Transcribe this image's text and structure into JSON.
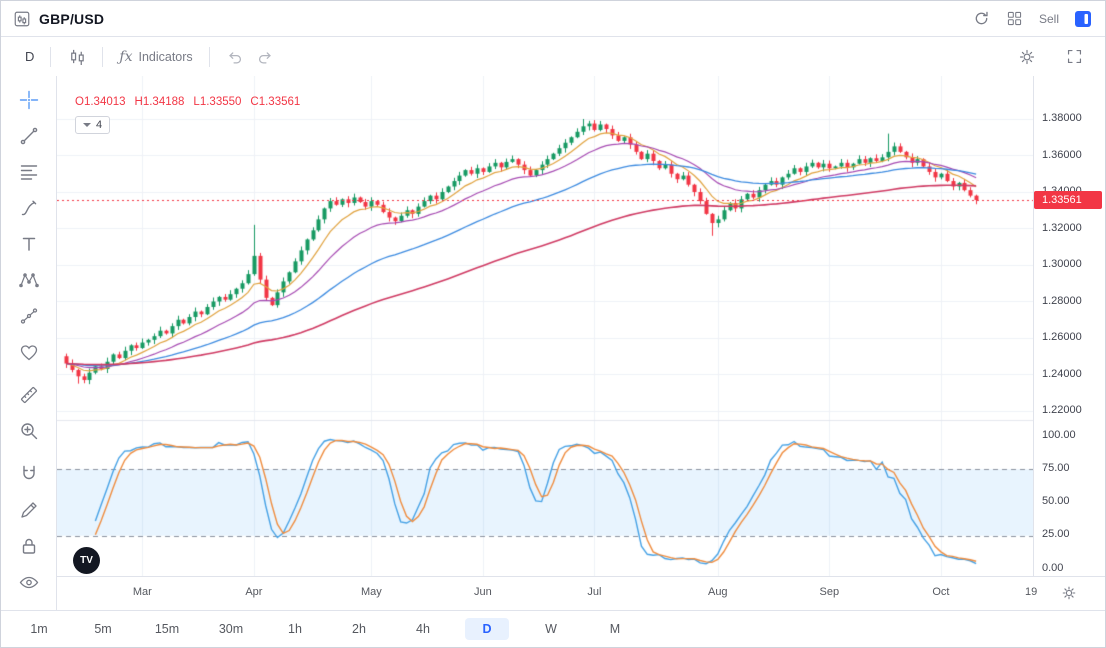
{
  "header": {
    "symbol": "GBP/USD",
    "sell_label": "Sell"
  },
  "toolbar": {
    "interval": "D",
    "fx": "ƒx",
    "indicators_label": "Indicators"
  },
  "legend": {
    "o_label": "O",
    "o": "1.34013",
    "h_label": "H",
    "h": "1.34188",
    "l_label": "L",
    "l": "1.33550",
    "c_label": "C",
    "c": "1.33561",
    "ma_group_count": "4"
  },
  "logo_text": "TV",
  "price_axis": {
    "labels": [
      "1.38000",
      "1.36000",
      "1.34000",
      "1.32000",
      "1.30000",
      "1.28000",
      "1.26000",
      "1.24000",
      "1.22000"
    ],
    "price_tag": "1.33561"
  },
  "stoch_axis": {
    "labels": [
      "100.00",
      "75.00",
      "50.00",
      "25.00",
      "0.00"
    ]
  },
  "time_axis": {
    "labels": [
      "Mar",
      "Apr",
      "May",
      "Jun",
      "Jul",
      "Aug",
      "Sep",
      "Oct"
    ],
    "partial_label": "19"
  },
  "bottom_bar": {
    "intervals": [
      "1m",
      "5m",
      "15m",
      "30m",
      "1h",
      "2h",
      "4h",
      "D",
      "W",
      "M"
    ],
    "selected": "D"
  },
  "sidebar": {
    "tools": [
      "crosshair",
      "trend-line",
      "fib-retracement",
      "brush",
      "text",
      "xabcd-pattern",
      "forecast",
      "emoji",
      "measure",
      "zoom-in",
      "magnet",
      "drawing-pencil-lock",
      "lock-all",
      "hide-all"
    ]
  },
  "colors": {
    "accent": "#2962ff",
    "grid": "#eef2f7",
    "pane_separator": "#e4e7ee",
    "band_dash": "#8a919e",
    "axis_text": "#40434e",
    "selected_bg": "#e8f1fe",
    "price_tag_bg": "#f23645"
  },
  "chart_data": {
    "type": "candlestick",
    "symbol": "GBP/USD",
    "interval": "D",
    "legend_last_ohlc": {
      "open": 1.34013,
      "high": 1.34188,
      "low": 1.3355,
      "close": 1.33561
    },
    "current_price": 1.33561,
    "price_range": [
      1.22,
      1.4
    ],
    "grid_levels": [
      1.38,
      1.36,
      1.34,
      1.32,
      1.3,
      1.28,
      1.26,
      1.24,
      1.22
    ],
    "months": [
      "Mar",
      "Apr",
      "May",
      "Jun",
      "Jul",
      "Aug",
      "Sep",
      "Oct"
    ],
    "month_indices": [
      13,
      32,
      52,
      71,
      90,
      111,
      130,
      149
    ],
    "up_color": "#179a63",
    "down_color": "#f23645",
    "candles": {
      "first_open": 1.25,
      "closes": [
        1.246,
        1.2425,
        1.239,
        1.237,
        1.241,
        1.2445,
        1.243,
        1.247,
        1.251,
        1.249,
        1.253,
        1.256,
        1.2545,
        1.2575,
        1.259,
        1.261,
        1.264,
        1.2625,
        1.2665,
        1.27,
        1.268,
        1.2715,
        1.2745,
        1.273,
        1.277,
        1.28,
        1.2825,
        1.281,
        1.284,
        1.287,
        1.29,
        1.295,
        1.305,
        1.292,
        1.282,
        1.278,
        1.285,
        1.291,
        1.296,
        1.302,
        1.308,
        1.314,
        1.319,
        1.325,
        1.331,
        1.335,
        1.333,
        1.336,
        1.334,
        1.337,
        1.3345,
        1.332,
        1.335,
        1.333,
        1.329,
        1.326,
        1.324,
        1.327,
        1.33,
        1.328,
        1.332,
        1.335,
        1.338,
        1.336,
        1.34,
        1.343,
        1.346,
        1.349,
        1.352,
        1.35,
        1.353,
        1.351,
        1.354,
        1.356,
        1.3535,
        1.3565,
        1.358,
        1.355,
        1.352,
        1.349,
        1.352,
        1.355,
        1.358,
        1.361,
        1.364,
        1.367,
        1.37,
        1.373,
        1.376,
        1.3775,
        1.374,
        1.377,
        1.3745,
        1.371,
        1.368,
        1.37,
        1.366,
        1.362,
        1.358,
        1.361,
        1.357,
        1.353,
        1.355,
        1.35,
        1.347,
        1.349,
        1.344,
        1.34,
        1.335,
        1.328,
        1.323,
        1.325,
        1.33,
        1.334,
        1.331,
        1.336,
        1.339,
        1.337,
        1.341,
        1.344,
        1.346,
        1.344,
        1.348,
        1.35,
        1.353,
        1.351,
        1.354,
        1.356,
        1.3535,
        1.3555,
        1.353,
        1.354,
        1.356,
        1.3535,
        1.3555,
        1.358,
        1.356,
        1.3585,
        1.357,
        1.359,
        1.362,
        1.365,
        1.362,
        1.359,
        1.356,
        1.358,
        1.354,
        1.351,
        1.348,
        1.35,
        1.346,
        1.343,
        1.345,
        1.341,
        1.338,
        1.33561
      ],
      "wick_overrides": {
        "2": {
          "l": 1.235
        },
        "32": {
          "h": 1.322
        },
        "88": {
          "h": 1.38
        },
        "89": {
          "h": 1.379
        },
        "110": {
          "l": 1.316
        },
        "140": {
          "h": 1.372
        }
      }
    },
    "moving_averages": [
      {
        "type": "EMA",
        "period": 8,
        "color": "#e0a23e",
        "width": 1.2
      },
      {
        "type": "EMA",
        "period": 18,
        "color": "#a64ab2",
        "width": 1.2
      },
      {
        "type": "EMA",
        "period": 40,
        "color": "#3b8ae0",
        "width": 1.3
      },
      {
        "type": "EMA",
        "period": 90,
        "color": "#cf3a63",
        "width": 1.6
      }
    ],
    "stochastic": {
      "k_period": 14,
      "k_smooth": 3,
      "d_period": 3,
      "k_color": "#45a1e5",
      "d_color": "#ef8c3e",
      "bands": [
        25,
        75
      ],
      "band_fill": "rgba(33,150,243,0.10)",
      "range": [
        0,
        100
      ],
      "axis_labels": [
        100,
        75,
        50,
        25,
        0
      ]
    }
  }
}
